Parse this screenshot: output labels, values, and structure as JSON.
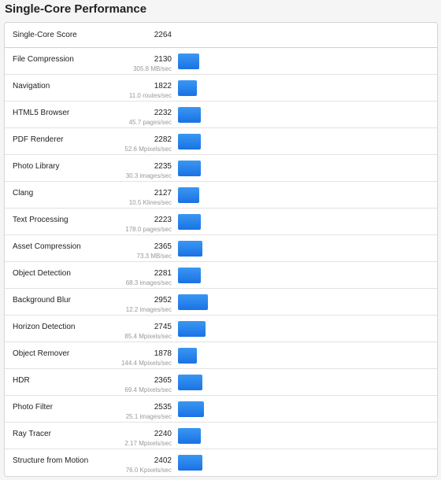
{
  "header": {
    "title": "Single-Core Performance"
  },
  "summary": {
    "label": "Single-Core Score",
    "score": 2264
  },
  "rows": [
    {
      "name": "File Compression",
      "score": 2130,
      "rate": "305.8 MB/sec"
    },
    {
      "name": "Navigation",
      "score": 1822,
      "rate": "11.0 routes/sec"
    },
    {
      "name": "HTML5 Browser",
      "score": 2232,
      "rate": "45.7 pages/sec"
    },
    {
      "name": "PDF Renderer",
      "score": 2282,
      "rate": "52.6 Mpixels/sec"
    },
    {
      "name": "Photo Library",
      "score": 2235,
      "rate": "30.3 images/sec"
    },
    {
      "name": "Clang",
      "score": 2127,
      "rate": "10.5 Klines/sec"
    },
    {
      "name": "Text Processing",
      "score": 2223,
      "rate": "178.0 pages/sec"
    },
    {
      "name": "Asset Compression",
      "score": 2365,
      "rate": "73.3 MB/sec"
    },
    {
      "name": "Object Detection",
      "score": 2281,
      "rate": "68.3 images/sec"
    },
    {
      "name": "Background Blur",
      "score": 2952,
      "rate": "12.2 images/sec"
    },
    {
      "name": "Horizon Detection",
      "score": 2745,
      "rate": "85.4 Mpixels/sec"
    },
    {
      "name": "Object Remover",
      "score": 1878,
      "rate": "144.4 Mpixels/sec"
    },
    {
      "name": "HDR",
      "score": 2365,
      "rate": "69.4 Mpixels/sec"
    },
    {
      "name": "Photo Filter",
      "score": 2535,
      "rate": "25.1 images/sec"
    },
    {
      "name": "Ray Tracer",
      "score": 2240,
      "rate": "2.17 Mpixels/sec"
    },
    {
      "name": "Structure from Motion",
      "score": 2402,
      "rate": "76.0 Kpixels/sec"
    }
  ]
}
